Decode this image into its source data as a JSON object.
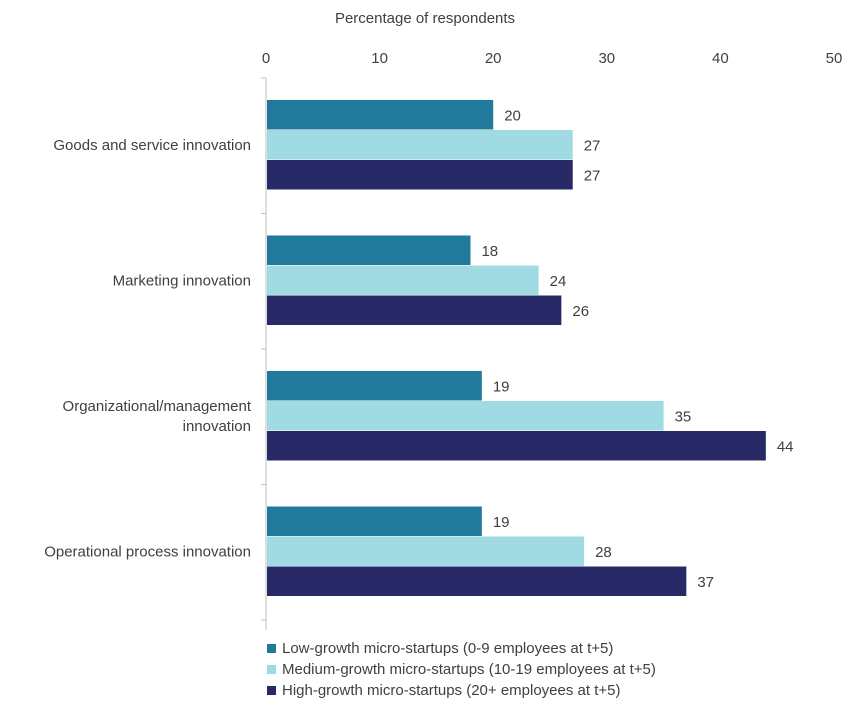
{
  "chart_data": {
    "type": "bar",
    "orientation": "horizontal",
    "xlabel": "Percentage of respondents",
    "xlim": [
      0,
      50
    ],
    "xticks": [
      0,
      10,
      20,
      30,
      40,
      50
    ],
    "categories": [
      [
        "Goods and service innovation"
      ],
      [
        "Marketing innovation"
      ],
      [
        "Organizational/management",
        "innovation"
      ],
      [
        "Operational process innovation"
      ]
    ],
    "series": [
      {
        "name": "Low-growth micro-startups (0-9 employees at t+5)",
        "color": "#21799b",
        "values": [
          20,
          18,
          19,
          19
        ]
      },
      {
        "name": "Medium-growth micro-startups (10-19 employees at t+5)",
        "color": "#a0dbe3",
        "values": [
          27,
          24,
          35,
          28
        ]
      },
      {
        "name": "High-growth micro-startups (20+ employees at t+5)",
        "color": "#272a66",
        "values": [
          27,
          26,
          44,
          37
        ]
      }
    ],
    "grid": false,
    "legend_position": "bottom"
  }
}
